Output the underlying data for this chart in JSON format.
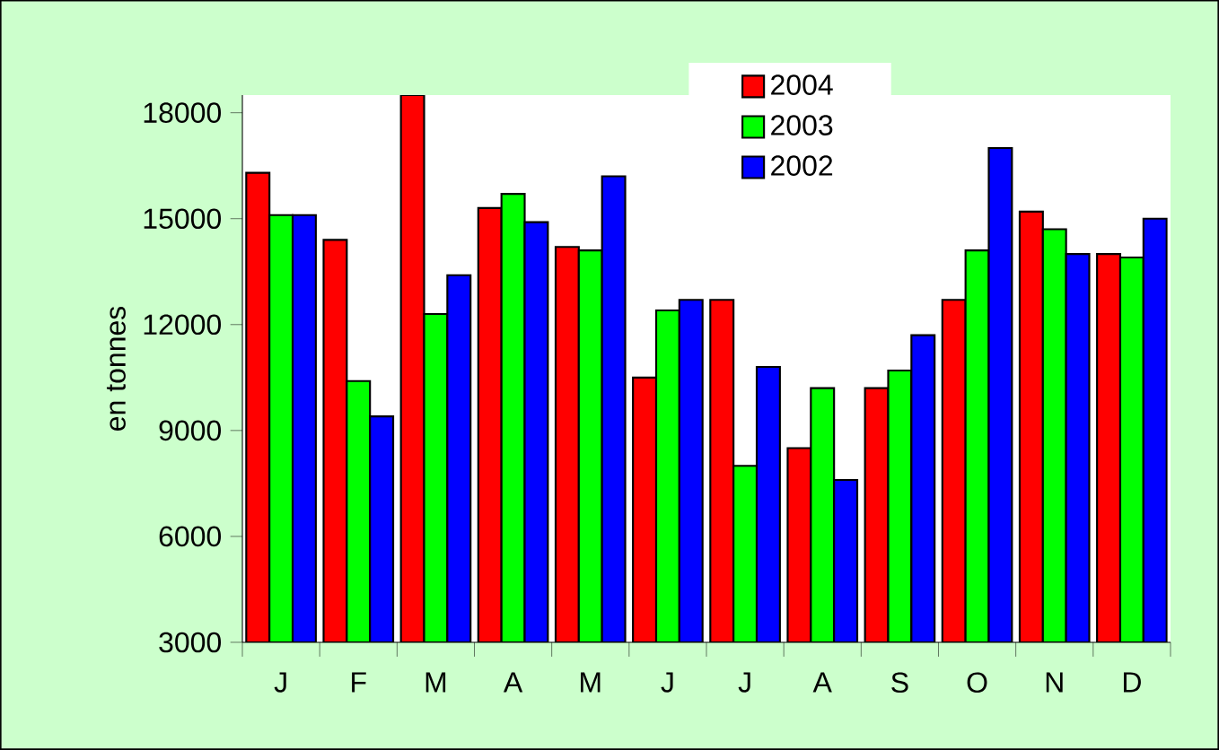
{
  "chart_data": {
    "type": "bar",
    "ylabel": "en tonnes",
    "categories": [
      "J",
      "F",
      "M",
      "A",
      "M",
      "J",
      "J",
      "A",
      "S",
      "O",
      "N",
      "D"
    ],
    "series": [
      {
        "name": "2004",
        "color": "#ff0000",
        "values": [
          16300,
          14400,
          18500,
          15300,
          14200,
          10500,
          12700,
          8500,
          10200,
          12700,
          15200,
          14000
        ]
      },
      {
        "name": "2003",
        "color": "#00ff00",
        "values": [
          15100,
          10400,
          12300,
          15700,
          14100,
          12400,
          8000,
          10200,
          10700,
          14100,
          14700,
          13900
        ]
      },
      {
        "name": "2002",
        "color": "#0000ff",
        "values": [
          15100,
          9400,
          13400,
          14900,
          16200,
          12700,
          10800,
          7600,
          11700,
          17000,
          14000,
          15000
        ]
      }
    ],
    "ylim": [
      3000,
      18500
    ],
    "yticks": [
      3000,
      6000,
      9000,
      12000,
      15000,
      18000
    ],
    "grid": false,
    "legend": "top"
  }
}
